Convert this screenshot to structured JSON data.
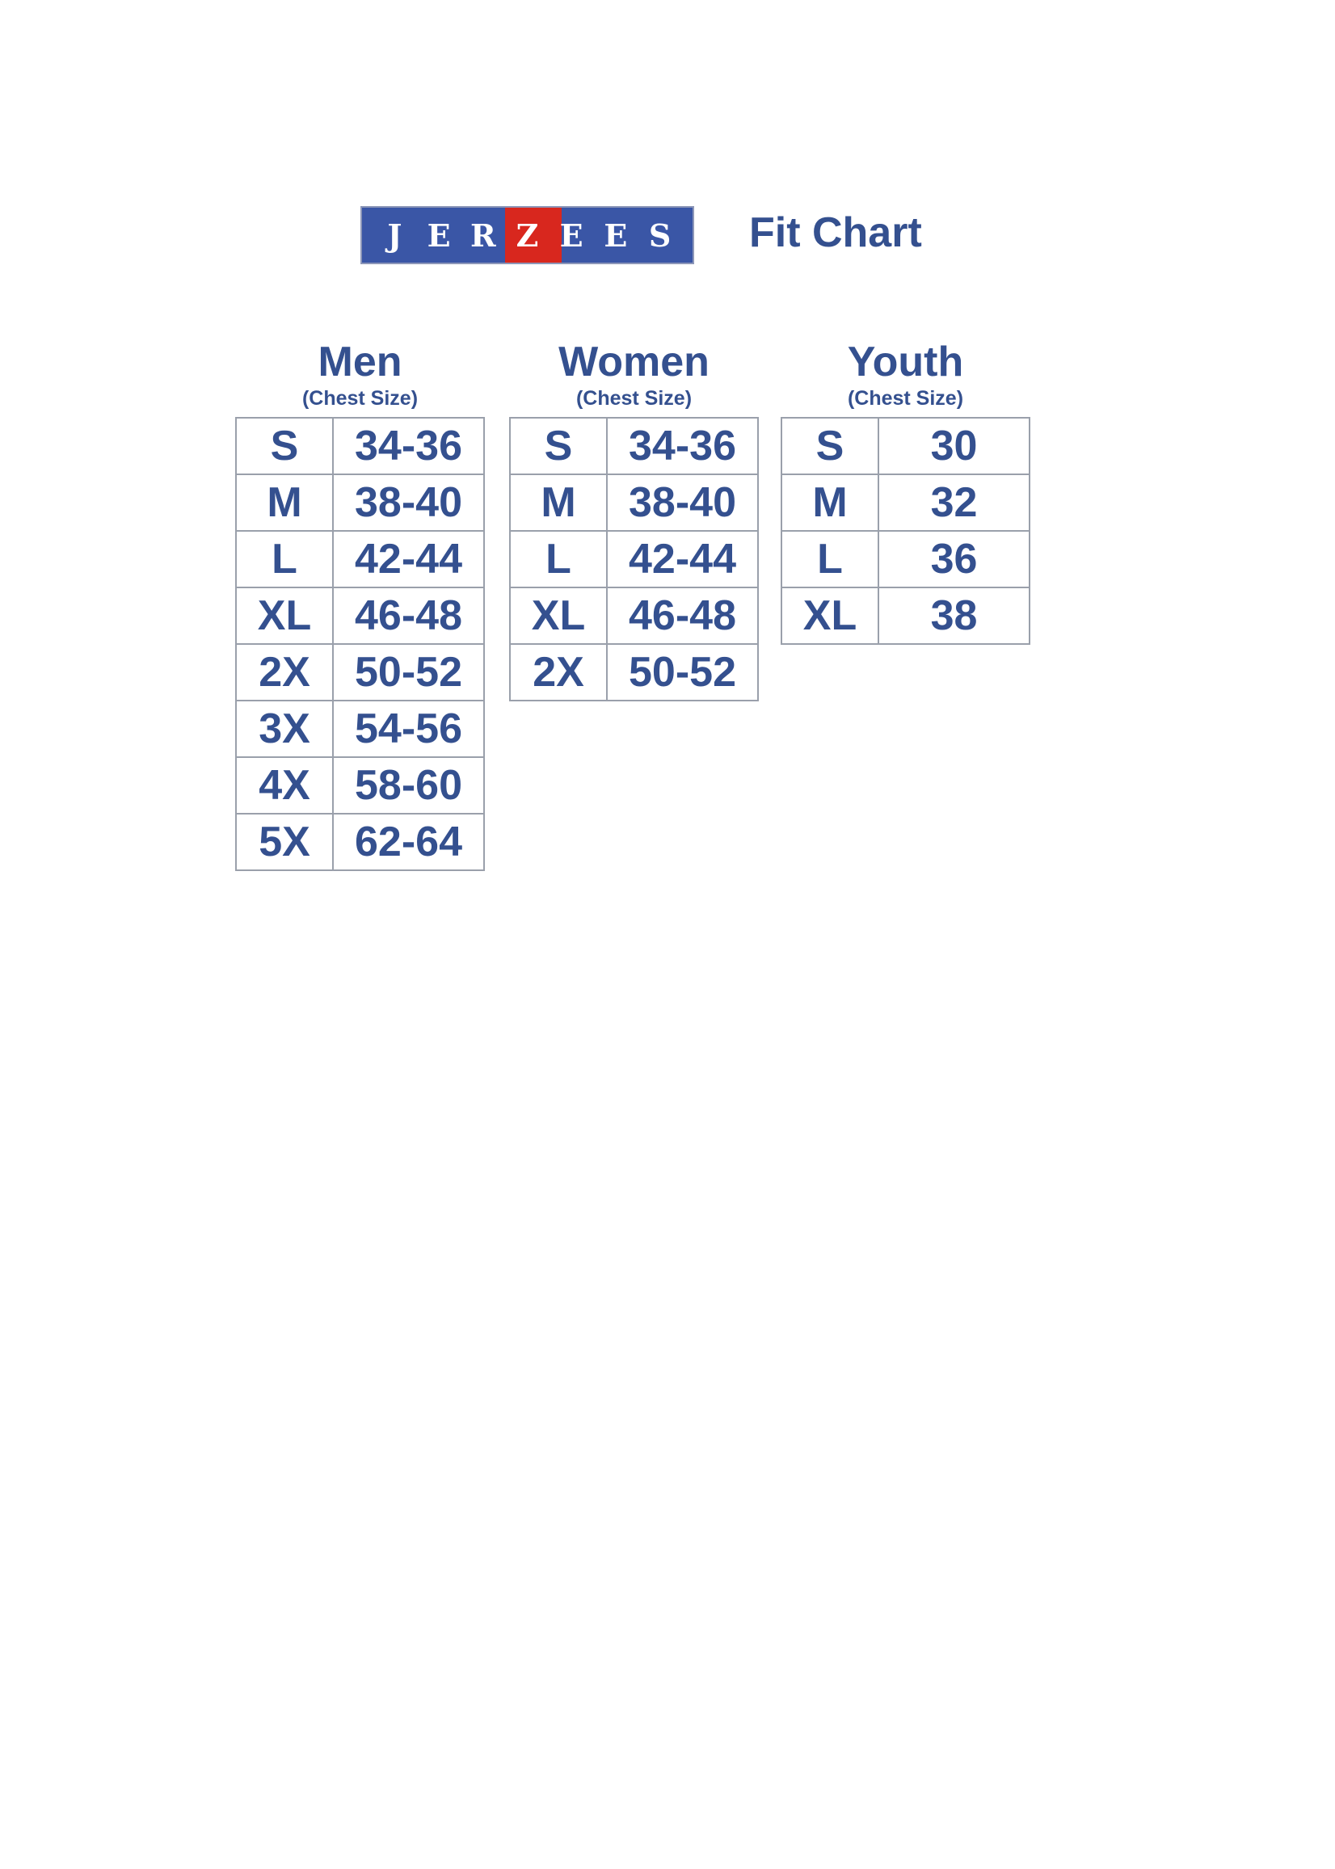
{
  "logo": {
    "text": "JERZEES",
    "letters": [
      "J",
      "E",
      "R",
      "Z",
      "E",
      "E",
      "S"
    ],
    "colors": {
      "blue": "#3a56a6",
      "red": "#d8271e"
    }
  },
  "title": "Fit Chart",
  "text_color": "#34508f",
  "groups": [
    {
      "heading": "Men",
      "subheading": "(Chest Size)",
      "rows": [
        [
          "S",
          "34-36"
        ],
        [
          "M",
          "38-40"
        ],
        [
          "L",
          "42-44"
        ],
        [
          "XL",
          "46-48"
        ],
        [
          "2X",
          "50-52"
        ],
        [
          "3X",
          "54-56"
        ],
        [
          "4X",
          "58-60"
        ],
        [
          "5X",
          "62-64"
        ]
      ]
    },
    {
      "heading": "Women",
      "subheading": "(Chest Size)",
      "rows": [
        [
          "S",
          "34-36"
        ],
        [
          "M",
          "38-40"
        ],
        [
          "L",
          "42-44"
        ],
        [
          "XL",
          "46-48"
        ],
        [
          "2X",
          "50-52"
        ]
      ]
    },
    {
      "heading": "Youth",
      "subheading": "(Chest Size)",
      "rows": [
        [
          "S",
          "30"
        ],
        [
          "M",
          "32"
        ],
        [
          "L",
          "36"
        ],
        [
          "XL",
          "38"
        ]
      ]
    }
  ]
}
